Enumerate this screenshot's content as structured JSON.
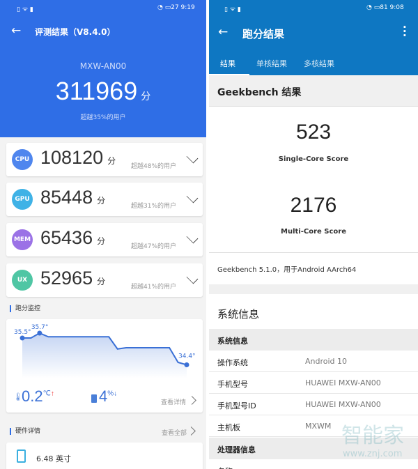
{
  "left": {
    "status": {
      "time": "9:19",
      "battery": "27"
    },
    "header": {
      "title": "评测结果（V8.4.0）"
    },
    "device": "MXW-AN00",
    "total_score": "311969",
    "score_unit": "分",
    "total_beat": "超越35%的用户",
    "scores": [
      {
        "badge": "CPU",
        "value": "108120",
        "unit": "分",
        "beat": "超越48%的用户",
        "color": "#4f86ee"
      },
      {
        "badge": "GPU",
        "value": "85448",
        "unit": "分",
        "beat": "超越31%的用户",
        "color": "#3fb2e6"
      },
      {
        "badge": "MEM",
        "value": "65436",
        "unit": "分",
        "beat": "超越47%的用户",
        "color": "#9b72e6"
      },
      {
        "badge": "UX",
        "value": "52965",
        "unit": "分",
        "beat": "超越41%的用户",
        "color": "#4fc6a4"
      }
    ],
    "monitor": {
      "title": "跑分监控",
      "start_label": "35.5°",
      "max_label": "35.7°",
      "end_label": "34.4°",
      "temps": [
        35.5,
        35.5,
        35.7,
        35.55,
        35.55,
        35.55,
        35.55,
        35.55,
        35.55,
        35.55,
        35.55,
        35.05,
        35.1,
        35.1,
        35.1,
        35.1,
        35.1,
        35.1,
        34.5,
        34.4
      ],
      "temp_change": "0.2",
      "temp_unit": "℃",
      "temp_arrow": "↑",
      "battery_change": "4",
      "battery_unit": "%",
      "battery_arrow": "↓",
      "details": "查看详情"
    },
    "hardware": {
      "title": "硬件详情",
      "view_all": "查看全部",
      "screen": "6.48 英寸"
    }
  },
  "right": {
    "status": {
      "time": "9:08",
      "battery": "81"
    },
    "header": {
      "title": "跑分结果"
    },
    "tabs": [
      "结果",
      "单核结果",
      "多核结果"
    ],
    "section_title": "Geekbench 结果",
    "single": {
      "value": "523",
      "label": "Single-Core Score"
    },
    "multi": {
      "value": "2176",
      "label": "Multi-Core Score"
    },
    "version": "Geekbench 5.1.0，用于Android AArch64",
    "sysinfo_title": "系统信息",
    "sysinfo_header": "系统信息",
    "rows": [
      {
        "k": "操作系统",
        "v": "Android 10"
      },
      {
        "k": "手机型号",
        "v": "HUAWEI MXW-AN00"
      },
      {
        "k": "手机型号ID",
        "v": "HUAWEI MXW-AN00"
      },
      {
        "k": "主机板",
        "v": "MXWM"
      }
    ],
    "cpu_header": "处理器信息",
    "cpu_row_label": "名称",
    "watermark": "智能家",
    "watermark_url": "www.znj.com"
  }
}
